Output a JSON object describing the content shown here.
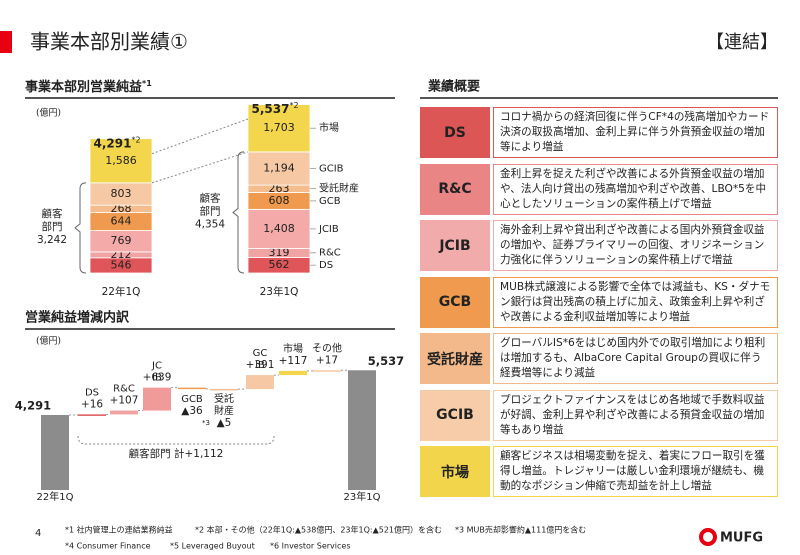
{
  "header": {
    "title": "事業本部別業績①",
    "tag": "【連結】"
  },
  "profit_chart": {
    "type": "stacked-bar",
    "title": "事業本部別営業純益",
    "title_note": "*1",
    "unit": "(億円)",
    "categories": [
      "22年1Q",
      "23年1Q"
    ],
    "series": [
      {
        "name": "DS",
        "color": "#e0555a",
        "values": [
          546,
          562
        ]
      },
      {
        "name": "R&C",
        "color": "#f0a3a3",
        "values": [
          212,
          319
        ]
      },
      {
        "name": "JCIB",
        "color": "#f4aaa8",
        "values": [
          769,
          1408
        ],
        "value_labels": [
          "769",
          "1,408"
        ]
      },
      {
        "name": "GCB",
        "color": "#ef9a4e",
        "values": [
          644,
          608
        ]
      },
      {
        "name": "受託財産",
        "color": "#f5bd8d",
        "values": [
          268,
          263
        ]
      },
      {
        "name": "GCIB",
        "color": "#f6c9a4",
        "values": [
          803,
          1194
        ],
        "value_labels": [
          "803",
          "1,194"
        ]
      },
      {
        "name": "市場",
        "color": "#f3d64b",
        "values": [
          1586,
          1703
        ],
        "value_labels": [
          "1,586",
          "1,703"
        ]
      }
    ],
    "totals": [
      {
        "value": 4291,
        "label": "4,291"
      },
      {
        "value": 5537,
        "label": "5,537"
      }
    ],
    "total_note": "*2",
    "customer_label": [
      "顧客",
      "部門"
    ],
    "customer_totals": [
      {
        "value": 3242,
        "label": "3,242"
      },
      {
        "value": 4354,
        "label": "4,354"
      }
    ]
  },
  "waterfall": {
    "type": "waterfall",
    "title": "営業純益増減内訳",
    "unit": "(億円)",
    "ylim": [
      2200,
      5600
    ],
    "categories": [
      "22年1Q",
      "DS",
      "R&C",
      "JCIB",
      "GCB",
      "受託財産",
      "GCIB",
      "市場",
      "その他",
      "23年1Q"
    ],
    "values": [
      4291,
      16,
      107,
      639,
      -36,
      -5,
      391,
      117,
      17,
      5537
    ],
    "value_labels": [
      "4,291",
      "+16",
      "+107",
      "+639",
      "▲36",
      "▲5",
      "+391",
      "+117",
      "+17",
      "5,537"
    ],
    "measure": [
      "absolute",
      "relative",
      "relative",
      "relative",
      "relative",
      "relative",
      "relative",
      "relative",
      "relative",
      "absolute"
    ],
    "colors": [
      "#8c8c8c",
      "#e0555a",
      "#f0a3a3",
      "#f09a9a",
      "#ef9a4e",
      "#f5bd8d",
      "#f6c9a4",
      "#f3d64b",
      "#f6c9a4",
      "#8c8c8c"
    ],
    "annotations": [
      {
        "at": "GCB",
        "text": "*3"
      }
    ],
    "bracket_label": "顧客部門 計+1,112"
  },
  "summary": {
    "title": "業績概要",
    "rows": [
      {
        "label": "DS",
        "color": "#dc5656",
        "text": "コロナ禍からの経済回復に伴うCF*4の残高増加やカード決済の取扱高増加、金利上昇に伴う外貨預金収益の増加等により増益"
      },
      {
        "label": "R&C",
        "color": "#e98585",
        "text": "金利上昇を捉えた利ざや改善による外貨預金収益の増加や、法人向け貸出の残高増加や利ざや改善、LBO*5を中心としたソリューションの案件積上げで増益"
      },
      {
        "label": "JCIB",
        "color": "#f2abab",
        "text": "海外金利上昇や貸出利ざや改善による国内外預貸金収益の増加や、証券プライマリーの回復、オリジネーション力強化に伴うソリューションの案件積上げで増益"
      },
      {
        "label": "GCB",
        "color": "#ef9a4e",
        "text": "MUB株式譲渡による影響で全体では減益も、KS・ダナモン銀行は貸出残高の積上げに加え、政策金利上昇や利ざや改善による金利収益増加等により増益"
      },
      {
        "label": "受託財産",
        "color": "#f4b98b",
        "text": "グローバルIS*6をはじめ国内外での取引増加により粗利は増加するも、AlbaCore Capital Groupの買収に伴う経費増等により減益"
      },
      {
        "label": "GCIB",
        "color": "#f7cca8",
        "text": "プロジェクトファイナンスをはじめ各地域で手数料収益が好調、金利上昇や利ざや改善による預貸金収益の増加等もあり増益"
      },
      {
        "label": "市場",
        "color": "#f2d54a",
        "text": "顧客ビジネスは相場変動を捉え、着実にフロー取引を獲得し増益。トレジャリーは厳しい金利環境が継続も、機動的なポジション伸縮で売却益を計上し増益"
      }
    ]
  },
  "footer": {
    "page": "4",
    "logo": "MUFG",
    "notes": [
      "*1 社内管理上の連結業務純益",
      "*2 本部・その他（22年1Q:▲538億円、23年1Q:▲521億円）を含む",
      "*3 MUB売却影響約▲111億円を含む",
      "*4 Consumer Finance",
      "*5 Leveraged Buyout",
      "*6 Investor Services"
    ]
  }
}
